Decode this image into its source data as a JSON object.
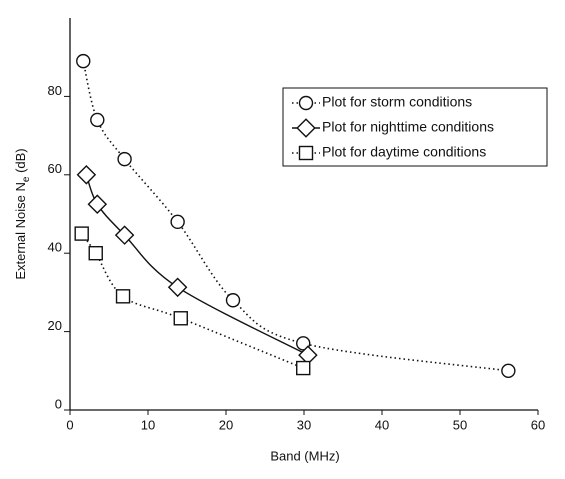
{
  "chart_data": {
    "type": "scatter",
    "xlabel": "Band (MHz)",
    "ylabel_parts": [
      "External Noise N",
      "e",
      " (dB)"
    ],
    "xlim": [
      0,
      60
    ],
    "xticks": [
      0,
      10,
      20,
      30,
      40,
      50,
      60
    ],
    "ylim": [
      0,
      100
    ],
    "yticks": [
      0,
      20,
      40,
      60,
      80
    ],
    "legend": "upper right",
    "series": [
      {
        "name": "Plot for storm conditions",
        "color": "#111111",
        "marker": "circle",
        "line": "dotted",
        "x": [
          1.7,
          3.5,
          7,
          13.8,
          20.9,
          29.9,
          56.2
        ],
        "values": [
          89,
          74,
          64,
          48,
          28,
          17,
          10
        ]
      },
      {
        "name": "Plot for nighttime conditions",
        "color": "#111111",
        "marker": "diamond",
        "line": "solid",
        "x": [
          2.1,
          3.5,
          7,
          13.8,
          30.5
        ],
        "values": [
          60,
          52.5,
          44.6,
          31.3,
          14
        ]
      },
      {
        "name": "Plot for daytime conditions",
        "color": "#111111",
        "marker": "square",
        "line": "dotted",
        "x": [
          1.5,
          3.3,
          6.8,
          14.2,
          29.9
        ],
        "values": [
          45,
          40,
          29,
          23.4,
          10.7
        ]
      }
    ]
  }
}
